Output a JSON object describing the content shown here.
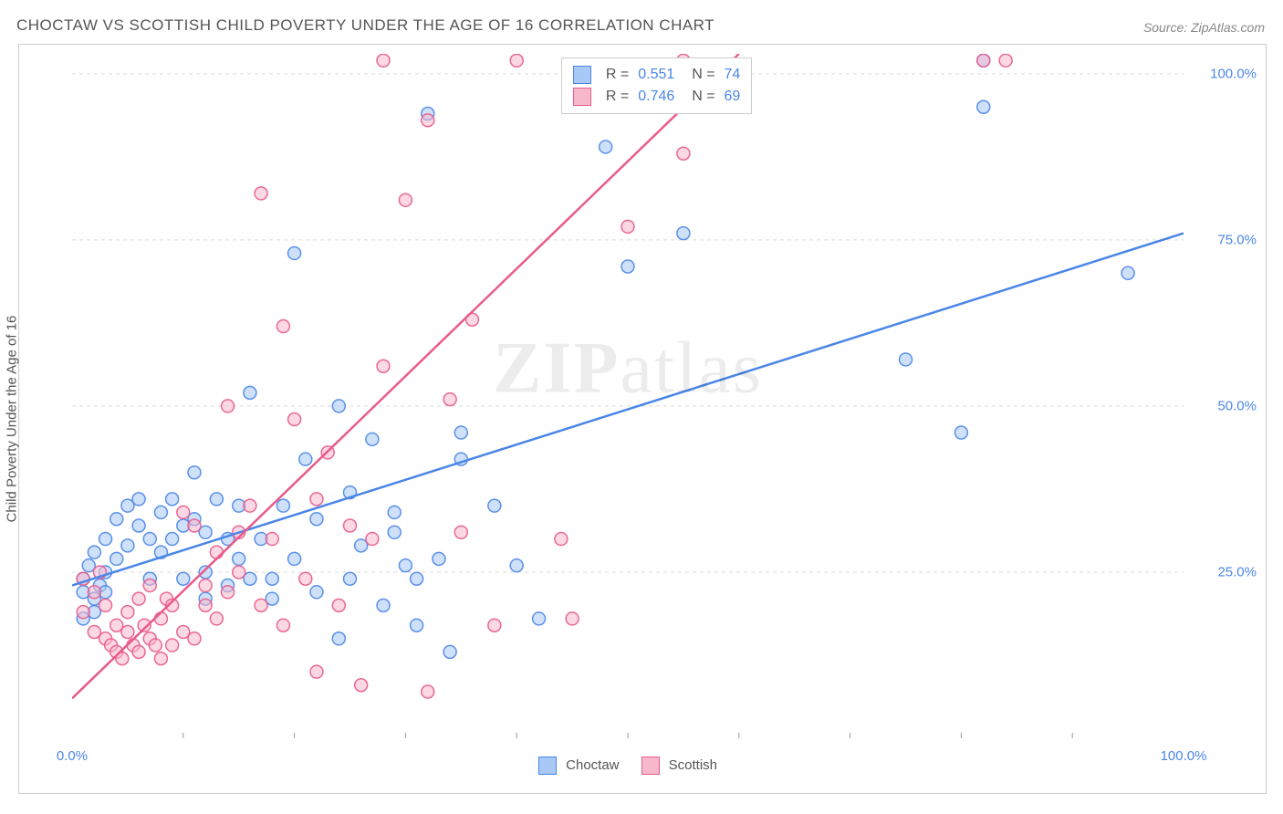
{
  "title": "CHOCTAW VS SCOTTISH CHILD POVERTY UNDER THE AGE OF 16 CORRELATION CHART",
  "source": "Source: ZipAtlas.com",
  "y_axis_label": "Child Poverty Under the Age of 16",
  "watermark": "ZIPatlas",
  "chart": {
    "type": "scatter",
    "xlim": [
      0,
      100
    ],
    "ylim": [
      0,
      103
    ],
    "x_ticks": [
      0,
      100
    ],
    "x_tick_labels": [
      "0.0%",
      "100.0%"
    ],
    "x_minor_ticks": [
      10,
      20,
      30,
      40,
      50,
      60,
      70,
      80,
      90
    ],
    "y_ticks": [
      25,
      50,
      75,
      100
    ],
    "y_tick_labels": [
      "25.0%",
      "50.0%",
      "75.0%",
      "100.0%"
    ],
    "background_color": "#ffffff",
    "grid_color": "#d9d9d9",
    "grid_dash": "4,4",
    "border_color": "#cccccc",
    "marker_radius": 7,
    "marker_stroke_width": 1.5,
    "marker_fill_opacity": 0.25,
    "line_width": 2.5,
    "series": [
      {
        "name": "Choctaw",
        "color": "#4a86e8",
        "fill": "#a8c8f5",
        "R": "0.551",
        "N": "74",
        "trend": {
          "x1": 0,
          "y1": 23,
          "x2": 100,
          "y2": 76
        },
        "points": [
          [
            1,
            22
          ],
          [
            1,
            24
          ],
          [
            1.5,
            26
          ],
          [
            2,
            21
          ],
          [
            2,
            28
          ],
          [
            2,
            19
          ],
          [
            1,
            18
          ],
          [
            2.5,
            23
          ],
          [
            3,
            25
          ],
          [
            3,
            30
          ],
          [
            4,
            27
          ],
          [
            4,
            33
          ],
          [
            5,
            29
          ],
          [
            5,
            35
          ],
          [
            3,
            22
          ],
          [
            6,
            32
          ],
          [
            6,
            36
          ],
          [
            7,
            30
          ],
          [
            7,
            24
          ],
          [
            8,
            34
          ],
          [
            8,
            28
          ],
          [
            9,
            30
          ],
          [
            9,
            36
          ],
          [
            10,
            32
          ],
          [
            10,
            24
          ],
          [
            11,
            33
          ],
          [
            11,
            40
          ],
          [
            12,
            31
          ],
          [
            12,
            25
          ],
          [
            13,
            36
          ],
          [
            14,
            30
          ],
          [
            14,
            23
          ],
          [
            15,
            27
          ],
          [
            15,
            35
          ],
          [
            16,
            24
          ],
          [
            16,
            52
          ],
          [
            17,
            30
          ],
          [
            18,
            24
          ],
          [
            18,
            21
          ],
          [
            19,
            35
          ],
          [
            20,
            73
          ],
          [
            20,
            27
          ],
          [
            21,
            42
          ],
          [
            22,
            33
          ],
          [
            22,
            22
          ],
          [
            24,
            50
          ],
          [
            24,
            15
          ],
          [
            25,
            37
          ],
          [
            25,
            24
          ],
          [
            26,
            29
          ],
          [
            27,
            45
          ],
          [
            28,
            20
          ],
          [
            29,
            34
          ],
          [
            30,
            26
          ],
          [
            31,
            24
          ],
          [
            31,
            17
          ],
          [
            32,
            94
          ],
          [
            33,
            27
          ],
          [
            34,
            13
          ],
          [
            35,
            46
          ],
          [
            35,
            42
          ],
          [
            38,
            35
          ],
          [
            40,
            26
          ],
          [
            42,
            18
          ],
          [
            48,
            89
          ],
          [
            50,
            71
          ],
          [
            55,
            76
          ],
          [
            75,
            57
          ],
          [
            80,
            46
          ],
          [
            82,
            95
          ],
          [
            82,
            102
          ],
          [
            95,
            70
          ],
          [
            29,
            31
          ],
          [
            12,
            21
          ]
        ]
      },
      {
        "name": "Scottish",
        "color": "#e85a8a",
        "fill": "#f7b8cc",
        "R": "0.746",
        "N": "69",
        "trend": {
          "x1": 0,
          "y1": 6,
          "x2": 60,
          "y2": 103
        },
        "points": [
          [
            1,
            24
          ],
          [
            1,
            19
          ],
          [
            2,
            16
          ],
          [
            2,
            22
          ],
          [
            2.5,
            25
          ],
          [
            3,
            15
          ],
          [
            3,
            20
          ],
          [
            3.5,
            14
          ],
          [
            4,
            17
          ],
          [
            4,
            13
          ],
          [
            4.5,
            12
          ],
          [
            5,
            16
          ],
          [
            5,
            19
          ],
          [
            5.5,
            14
          ],
          [
            6,
            21
          ],
          [
            6,
            13
          ],
          [
            6.5,
            17
          ],
          [
            7,
            15
          ],
          [
            7,
            23
          ],
          [
            7.5,
            14
          ],
          [
            8,
            18
          ],
          [
            8,
            12
          ],
          [
            8.5,
            21
          ],
          [
            9,
            20
          ],
          [
            9,
            14
          ],
          [
            10,
            34
          ],
          [
            10,
            16
          ],
          [
            11,
            15
          ],
          [
            11,
            32
          ],
          [
            12,
            23
          ],
          [
            12,
            20
          ],
          [
            13,
            28
          ],
          [
            13,
            18
          ],
          [
            14,
            22
          ],
          [
            14,
            50
          ],
          [
            15,
            25
          ],
          [
            15,
            31
          ],
          [
            16,
            35
          ],
          [
            17,
            82
          ],
          [
            17,
            20
          ],
          [
            18,
            30
          ],
          [
            19,
            62
          ],
          [
            19,
            17
          ],
          [
            20,
            48
          ],
          [
            21,
            24
          ],
          [
            22,
            36
          ],
          [
            22,
            10
          ],
          [
            23,
            43
          ],
          [
            24,
            20
          ],
          [
            25,
            32
          ],
          [
            26,
            8
          ],
          [
            27,
            30
          ],
          [
            28,
            56
          ],
          [
            28,
            102
          ],
          [
            30,
            81
          ],
          [
            32,
            93
          ],
          [
            32,
            7
          ],
          [
            34,
            51
          ],
          [
            35,
            31
          ],
          [
            36,
            63
          ],
          [
            38,
            17
          ],
          [
            40,
            102
          ],
          [
            44,
            30
          ],
          [
            45,
            18
          ],
          [
            50,
            77
          ],
          [
            55,
            88
          ],
          [
            55,
            102
          ],
          [
            82,
            102
          ],
          [
            84,
            102
          ]
        ]
      }
    ]
  },
  "bottom_legend": [
    {
      "label": "Choctaw",
      "fill": "#a8c8f5",
      "border": "#4a86e8"
    },
    {
      "label": "Scottish",
      "fill": "#f7b8cc",
      "border": "#e85a8a"
    }
  ]
}
